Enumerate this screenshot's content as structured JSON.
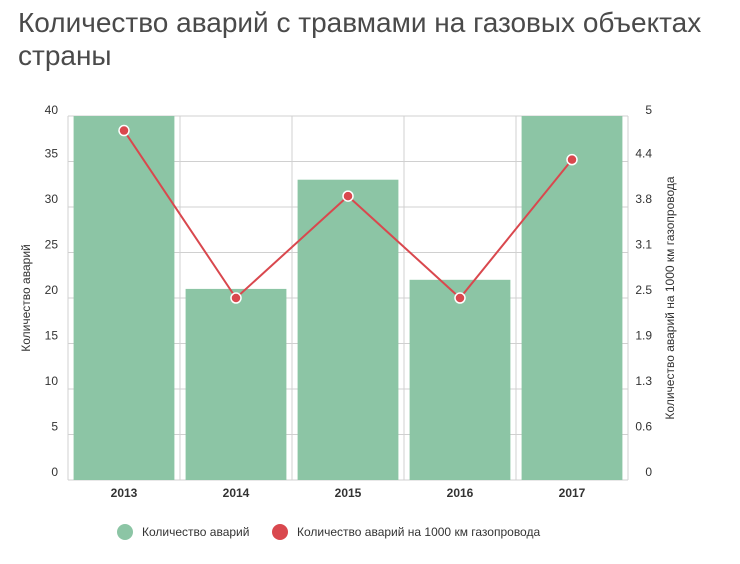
{
  "title": "Количество аварий с травмами на газовых объектах страны",
  "chart_data": {
    "type": "bar",
    "categories": [
      "2013",
      "2014",
      "2015",
      "2016",
      "2017"
    ],
    "series": [
      {
        "name": "Количество аварий",
        "type": "bar",
        "axis": "left",
        "values": [
          40,
          21,
          33,
          22,
          40
        ],
        "color": "#8cc5a5"
      },
      {
        "name": "Количество аварий на 1000 км газопровода",
        "type": "line",
        "axis": "right",
        "values": [
          4.8,
          2.5,
          3.9,
          2.5,
          4.4
        ],
        "color": "#d9484e"
      }
    ],
    "ylabel": "Количество аварий",
    "y2label": "Количество аварий на 1000 км газопровода",
    "ylim": [
      0,
      40
    ],
    "y2lim": [
      0,
      5
    ],
    "yticks": [
      "0",
      "5",
      "10",
      "15",
      "20",
      "25",
      "30",
      "35",
      "40"
    ],
    "y2ticks": [
      "0",
      "0.6",
      "1.3",
      "1.9",
      "2.5",
      "3.1",
      "3.8",
      "4.4",
      "5"
    ],
    "grid": true,
    "legend": "bottom-center"
  }
}
